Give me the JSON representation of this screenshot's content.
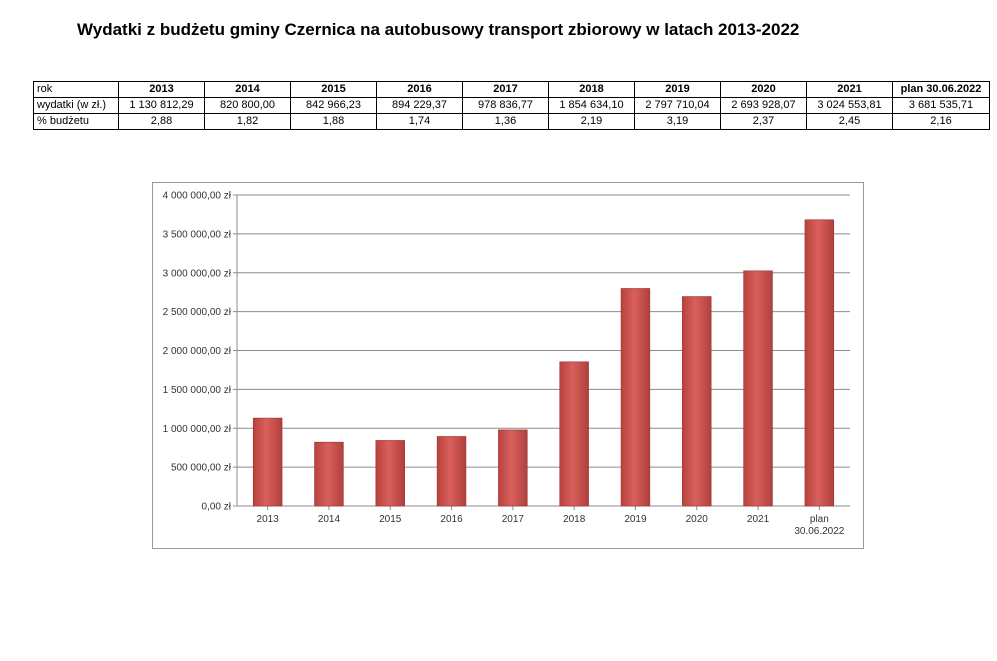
{
  "page": {
    "title": "Wydatki z budżetu gminy Czernica na autobusowy transport zbiorowy w latach 2013-2022"
  },
  "table": {
    "row_labels": [
      "rok",
      "wydatki (w zł.)",
      "% budżetu"
    ],
    "years": [
      "2013",
      "2014",
      "2015",
      "2016",
      "2017",
      "2018",
      "2019",
      "2020",
      "2021",
      "plan 30.06.2022"
    ],
    "expenses": [
      "1 130 812,29",
      "820 800,00",
      "842 966,23",
      "894 229,37",
      "978 836,77",
      "1 854 634,10",
      "2 797 710,04",
      "2 693 928,07",
      "3 024 553,81",
      "3 681 535,71"
    ],
    "percent": [
      "2,88",
      "1,82",
      "1,88",
      "1,74",
      "1,36",
      "2,19",
      "3,19",
      "2,37",
      "2,45",
      "2,16"
    ]
  },
  "chart_data": {
    "type": "bar",
    "categories": [
      "2013",
      "2014",
      "2015",
      "2016",
      "2017",
      "2018",
      "2019",
      "2020",
      "2021",
      "plan 30.06.2022"
    ],
    "category_lines": [
      [
        "2013"
      ],
      [
        "2014"
      ],
      [
        "2015"
      ],
      [
        "2016"
      ],
      [
        "2017"
      ],
      [
        "2018"
      ],
      [
        "2019"
      ],
      [
        "2020"
      ],
      [
        "2021"
      ],
      [
        "plan",
        "30.06.2022"
      ]
    ],
    "values": [
      1130812.29,
      820800.0,
      842966.23,
      894229.37,
      978836.77,
      1854634.1,
      2797710.04,
      2693928.07,
      3024553.81,
      3681535.71
    ],
    "ylim": [
      0,
      4000000
    ],
    "yticks": [
      0,
      500000,
      1000000,
      1500000,
      2000000,
      2500000,
      3000000,
      3500000,
      4000000
    ],
    "ytick_labels": [
      "0,00 zł",
      "500 000,00 zł",
      "1 000 000,00 zł",
      "1 500 000,00 zł",
      "2 000 000,00 zł",
      "2 500 000,00 zł",
      "3 000 000,00 zł",
      "3 500 000,00 zł",
      "4 000 000,00 zł"
    ],
    "grid": true,
    "legend": "none",
    "bar_color": "#c0504d"
  }
}
